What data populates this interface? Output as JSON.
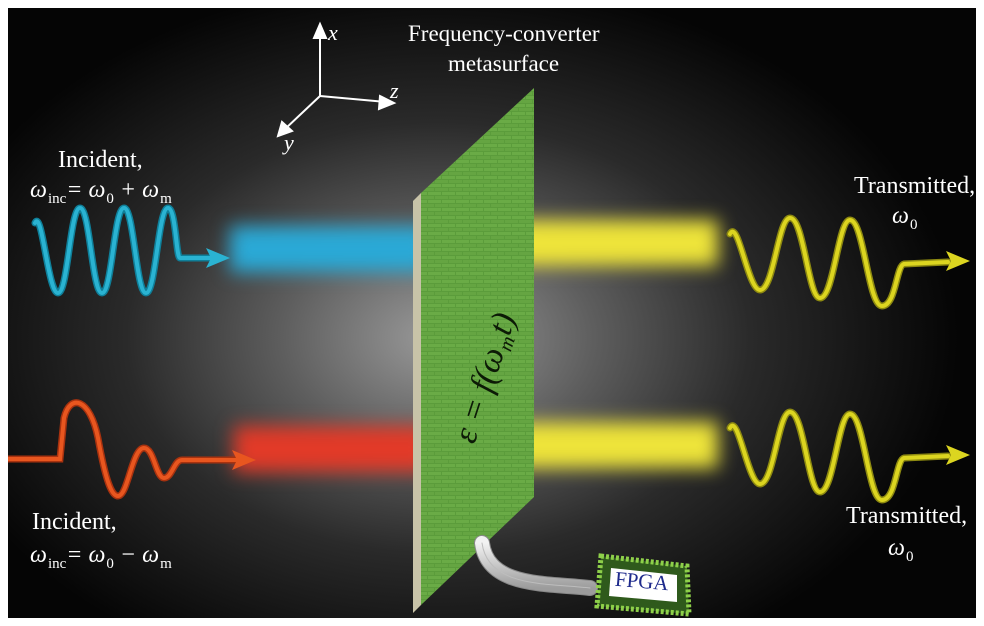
{
  "title": {
    "line1": "Frequency-converter",
    "line2": "metasurface"
  },
  "axes": {
    "x": "x",
    "y": "y",
    "z": "z"
  },
  "incident_top": {
    "heading": "Incident,",
    "omega": "ω",
    "inc_sub": "inc",
    "equals_omega0": "= ω",
    "zero_sub": "0",
    "plus_omega": " + ω",
    "m_sub": "m"
  },
  "incident_bottom": {
    "heading": "Incident,",
    "omega": "ω",
    "inc_sub": "inc",
    "equals_omega0": "= ω",
    "zero_sub": "0",
    "minus_omega": " − ω",
    "m_sub": "m"
  },
  "transmitted_top": {
    "heading": "Transmitted,",
    "omega": "ω",
    "zero_sub": "0"
  },
  "transmitted_bottom": {
    "heading": "Transmitted,",
    "omega": "ω",
    "zero_sub": "0"
  },
  "equation": {
    "epsilon": "ε = f(ω",
    "m_sub": "m",
    "t": "t)"
  },
  "chip": {
    "label": "FPGA"
  },
  "colors": {
    "cyan_wave": "#1ea6c4",
    "red_wave": "#e04e1c",
    "yellow_wave": "#d8d21c",
    "metasurface": "#5a9a3a",
    "chip_border": "#7fc23a"
  }
}
